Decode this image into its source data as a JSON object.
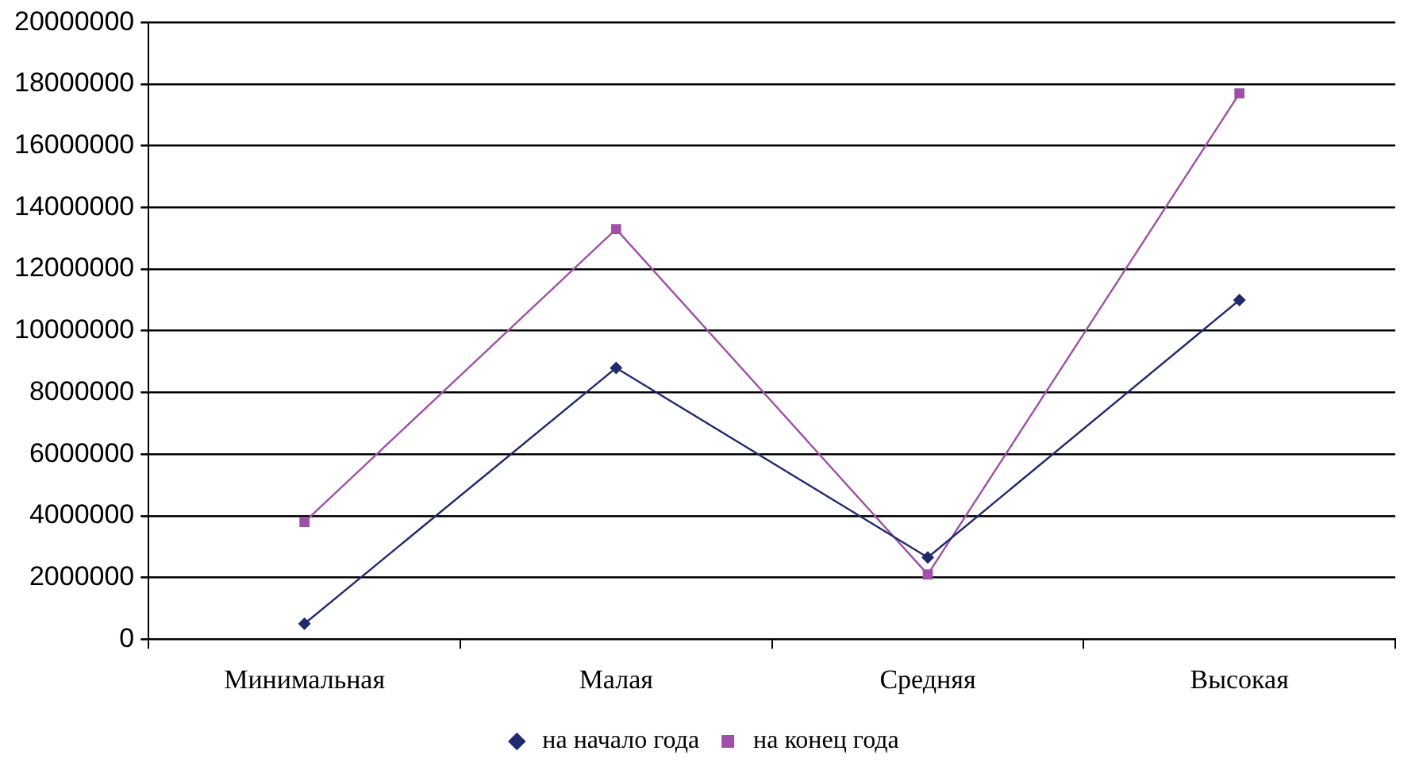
{
  "chart_data": {
    "type": "line",
    "categories": [
      "Минимальная",
      "Малая",
      "Средняя",
      "Высокая"
    ],
    "series": [
      {
        "name": "на начало года",
        "color": "#1f2a6e",
        "marker": "diamond",
        "values": [
          500000,
          8800000,
          2650000,
          11000000
        ]
      },
      {
        "name": "на конец года",
        "color": "#a050a8",
        "marker": "square",
        "values": [
          3800000,
          13300000,
          2100000,
          17700000
        ]
      }
    ],
    "ylim": [
      0,
      20000000
    ],
    "yticks": [
      0,
      2000000,
      4000000,
      6000000,
      8000000,
      10000000,
      12000000,
      14000000,
      16000000,
      18000000,
      20000000
    ],
    "grid": "y",
    "legend": "bottom",
    "line_style": "solid"
  }
}
